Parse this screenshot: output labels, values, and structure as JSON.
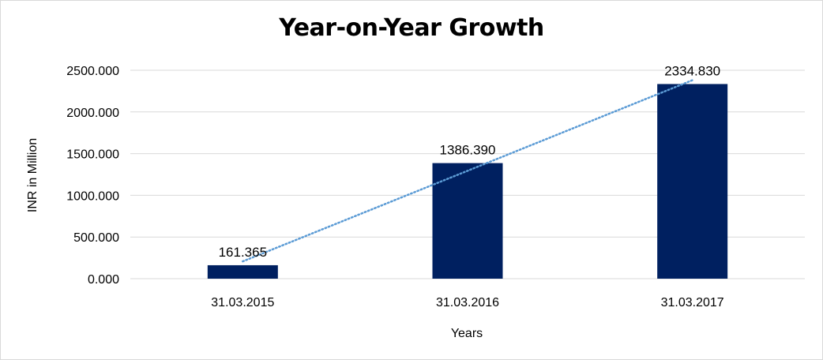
{
  "chart_data": {
    "type": "bar",
    "title": "Year-on-Year Growth",
    "xlabel": "Years",
    "ylabel": "INR in Million",
    "categories": [
      "31.03.2015",
      "31.03.2016",
      "31.03.2017"
    ],
    "values": [
      161.365,
      1386.39,
      2334.83
    ],
    "data_labels": [
      "161.365",
      "1386.390",
      "2334.830"
    ],
    "ylim": [
      0,
      2500
    ],
    "yticks": [
      0,
      500,
      1000,
      1500,
      2000,
      2500
    ],
    "ytick_labels": [
      "0.000",
      "500.000",
      "1000.000",
      "1500.000",
      "2000.000",
      "2500.000"
    ],
    "grid": true,
    "legend": "none",
    "trendline": {
      "type": "linear",
      "style": "dotted"
    },
    "colors": {
      "bar": "#002060",
      "trendline": "#5b9bd5",
      "grid": "#d9d9d9"
    }
  }
}
